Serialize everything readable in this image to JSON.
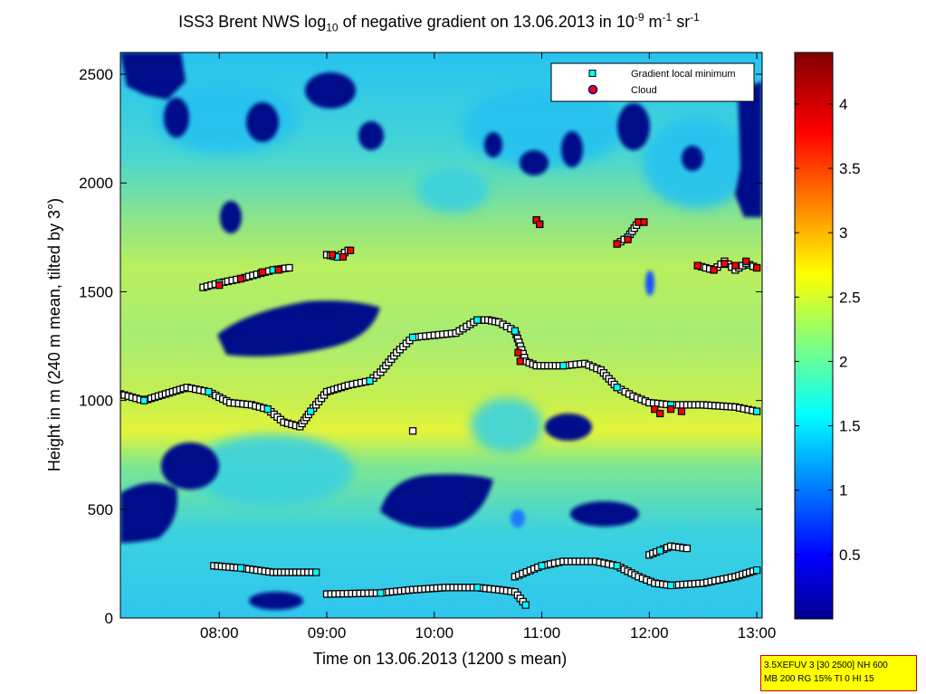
{
  "title": {
    "prefix": "ISS3 Brent NWS log",
    "sub": "10",
    "middle": " of negative gradient on 13.06.2013 in 10",
    "exp1": "-9",
    "unit1": " m",
    "exp2": "-1",
    "unit2": " sr",
    "exp3": "-1"
  },
  "chart_data": {
    "type": "heatmap",
    "xlabel": "Time on 13.06.2013 (1200 s mean)",
    "ylabel": "Height in m (240 m mean, tilted by 3°)",
    "xlim_hours": [
      7.08,
      13.05
    ],
    "ylim": [
      0,
      2600
    ],
    "x_ticks": [
      {
        "value": 8,
        "label": "08:00"
      },
      {
        "value": 9,
        "label": "09:00"
      },
      {
        "value": 10,
        "label": "10:00"
      },
      {
        "value": 11,
        "label": "11:00"
      },
      {
        "value": 12,
        "label": "12:00"
      },
      {
        "value": 13,
        "label": "13:00"
      }
    ],
    "y_ticks": [
      {
        "value": 0,
        "label": "0"
      },
      {
        "value": 500,
        "label": "500"
      },
      {
        "value": 1000,
        "label": "1000"
      },
      {
        "value": 1500,
        "label": "1500"
      },
      {
        "value": 2000,
        "label": "2000"
      },
      {
        "value": 2500,
        "label": "2500"
      }
    ],
    "colorbar": {
      "range": [
        0,
        4.4
      ],
      "ticks": [
        {
          "value": 0.5,
          "label": "0.5"
        },
        {
          "value": 1,
          "label": "1"
        },
        {
          "value": 1.5,
          "label": "1.5"
        },
        {
          "value": 2,
          "label": "2"
        },
        {
          "value": 2.5,
          "label": "2.5"
        },
        {
          "value": 3,
          "label": "3"
        },
        {
          "value": 3.5,
          "label": "3.5"
        },
        {
          "value": 4,
          "label": "4"
        }
      ]
    },
    "legend": {
      "position": "top-right",
      "entries": [
        {
          "label": "Gradient local minimum",
          "marker": "square",
          "color": "#00ffff"
        },
        {
          "label": "Cloud",
          "marker": "circle",
          "color": "#ff0000"
        }
      ]
    },
    "colors": {
      "gradient_marker": "#00ffff",
      "cloud_marker": "#ff0000",
      "marker_edge": "#000000"
    },
    "gradient_minimum_series": [
      {
        "name": "boundary-layer-top",
        "points": [
          [
            7.08,
            1030
          ],
          [
            7.3,
            1000
          ],
          [
            7.5,
            1030
          ],
          [
            7.7,
            1060
          ],
          [
            7.9,
            1040
          ],
          [
            8.1,
            990
          ],
          [
            8.3,
            980
          ],
          [
            8.45,
            960
          ],
          [
            8.6,
            900
          ],
          [
            8.75,
            880
          ],
          [
            8.85,
            950
          ],
          [
            9.0,
            1040
          ],
          [
            9.2,
            1070
          ],
          [
            9.4,
            1090
          ],
          [
            9.5,
            1130
          ],
          [
            9.65,
            1220
          ],
          [
            9.8,
            1290
          ],
          [
            10.0,
            1300
          ],
          [
            10.2,
            1310
          ],
          [
            10.4,
            1370
          ],
          [
            10.5,
            1370
          ],
          [
            10.6,
            1360
          ],
          [
            10.75,
            1320
          ],
          [
            10.85,
            1180
          ],
          [
            10.95,
            1160
          ],
          [
            11.2,
            1160
          ],
          [
            11.4,
            1170
          ],
          [
            11.55,
            1140
          ],
          [
            11.7,
            1060
          ],
          [
            11.85,
            1020
          ],
          [
            12.0,
            990
          ],
          [
            12.2,
            980
          ],
          [
            12.5,
            980
          ],
          [
            12.8,
            970
          ],
          [
            13.0,
            950
          ]
        ]
      },
      {
        "name": "elevated-layer-a",
        "points": [
          [
            7.85,
            1520
          ],
          [
            8.0,
            1540
          ],
          [
            8.2,
            1560
          ],
          [
            8.35,
            1580
          ],
          [
            8.5,
            1600
          ],
          [
            8.65,
            1610
          ]
        ]
      },
      {
        "name": "elevated-layer-b",
        "points": [
          [
            9.0,
            1670
          ],
          [
            9.1,
            1660
          ],
          [
            9.2,
            1690
          ]
        ]
      },
      {
        "name": "elevated-layer-c",
        "points": [
          [
            10.95,
            1830
          ],
          [
            10.98,
            1810
          ]
        ]
      },
      {
        "name": "elevated-layer-d",
        "points": [
          [
            11.7,
            1720
          ],
          [
            11.8,
            1750
          ],
          [
            11.9,
            1820
          ],
          [
            11.95,
            1820
          ]
        ]
      },
      {
        "name": "elevated-layer-e",
        "points": [
          [
            12.45,
            1620
          ],
          [
            12.6,
            1600
          ],
          [
            12.7,
            1640
          ],
          [
            12.8,
            1600
          ],
          [
            12.9,
            1630
          ],
          [
            13.0,
            1610
          ]
        ]
      },
      {
        "name": "low-layer-a",
        "points": [
          [
            7.95,
            240
          ],
          [
            8.2,
            230
          ],
          [
            8.5,
            210
          ],
          [
            8.75,
            210
          ],
          [
            8.9,
            210
          ]
        ]
      },
      {
        "name": "low-layer-b",
        "points": [
          [
            9.0,
            110
          ],
          [
            9.5,
            115
          ],
          [
            9.8,
            130
          ],
          [
            10.1,
            140
          ],
          [
            10.4,
            140
          ],
          [
            10.6,
            130
          ],
          [
            10.75,
            120
          ],
          [
            10.85,
            60
          ]
        ]
      },
      {
        "name": "low-layer-c",
        "points": [
          [
            10.75,
            190
          ],
          [
            11.0,
            240
          ],
          [
            11.2,
            260
          ],
          [
            11.5,
            260
          ],
          [
            11.7,
            240
          ],
          [
            11.9,
            190
          ],
          [
            12.05,
            160
          ],
          [
            12.2,
            150
          ],
          [
            12.5,
            160
          ],
          [
            12.8,
            190
          ],
          [
            13.0,
            220
          ]
        ]
      },
      {
        "name": "low-layer-d",
        "points": [
          [
            12.0,
            290
          ],
          [
            12.1,
            310
          ],
          [
            12.2,
            330
          ],
          [
            12.35,
            320
          ]
        ]
      },
      {
        "name": "isolated-point",
        "points": [
          [
            9.8,
            860
          ]
        ]
      }
    ],
    "cloud_points": [
      [
        8.0,
        1530
      ],
      [
        8.2,
        1560
      ],
      [
        8.4,
        1590
      ],
      [
        8.55,
        1600
      ],
      [
        9.05,
        1670
      ],
      [
        9.15,
        1660
      ],
      [
        9.22,
        1690
      ],
      [
        10.95,
        1830
      ],
      [
        10.98,
        1810
      ],
      [
        11.7,
        1720
      ],
      [
        11.8,
        1740
      ],
      [
        11.9,
        1820
      ],
      [
        11.95,
        1820
      ],
      [
        12.45,
        1620
      ],
      [
        12.6,
        1600
      ],
      [
        12.7,
        1630
      ],
      [
        12.8,
        1620
      ],
      [
        12.9,
        1640
      ],
      [
        13.0,
        1610
      ],
      [
        10.78,
        1220
      ],
      [
        10.8,
        1180
      ],
      [
        12.05,
        960
      ],
      [
        12.1,
        940
      ],
      [
        12.2,
        960
      ],
      [
        12.3,
        950
      ]
    ]
  },
  "info_box": {
    "line1": "3.5XEFUV 3 [30 2500] NH 600",
    "line2": "MB 200 RG 15% TI 0 HI 15"
  }
}
